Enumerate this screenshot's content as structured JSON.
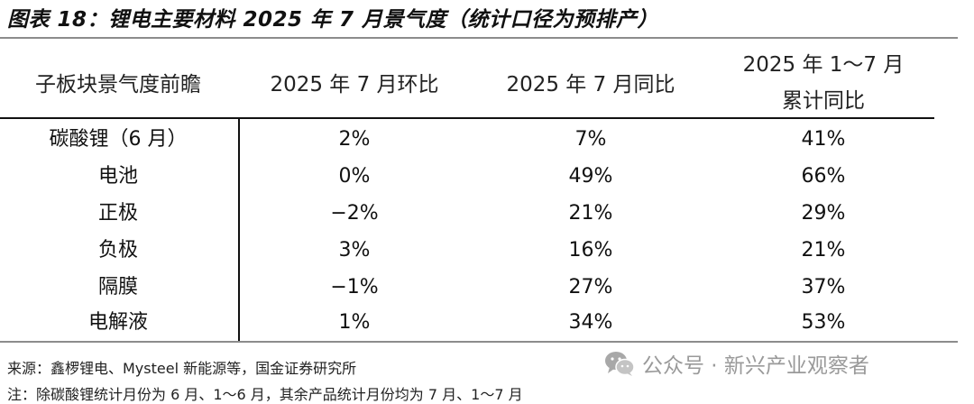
{
  "figure": {
    "title": "图表 18：锂电主要材料 2025 年 7 月景气度（统计口径为预排产）"
  },
  "table": {
    "headers": [
      [
        "子板块景气度前瞻"
      ],
      [
        "2025 年 7 月环比"
      ],
      [
        "2025 年 7 月同比"
      ],
      [
        "2025 年 1～7 月",
        "累计同比"
      ]
    ],
    "rows": [
      [
        "碳酸锂（6 月）",
        "2%",
        "7%",
        "41%"
      ],
      [
        "电池",
        "0%",
        "49%",
        "66%"
      ],
      [
        "正极",
        "−2%",
        "21%",
        "29%"
      ],
      [
        "负极",
        "3%",
        "16%",
        "21%"
      ],
      [
        "隔膜",
        "−1%",
        "27%",
        "37%"
      ],
      [
        "电解液",
        "1%",
        "34%",
        "53%"
      ]
    ]
  },
  "footer": {
    "source": "来源：鑫椤锂电、Mysteel 新能源等，国金证券研究所",
    "note": "注：除碳酸锂统计月份为 6 月、1～6 月，其余产品统计月份均为 7 月、1～7 月"
  },
  "watermark": {
    "text": "公众号 · 新兴产业观察者",
    "icon": "wechat-icon"
  }
}
